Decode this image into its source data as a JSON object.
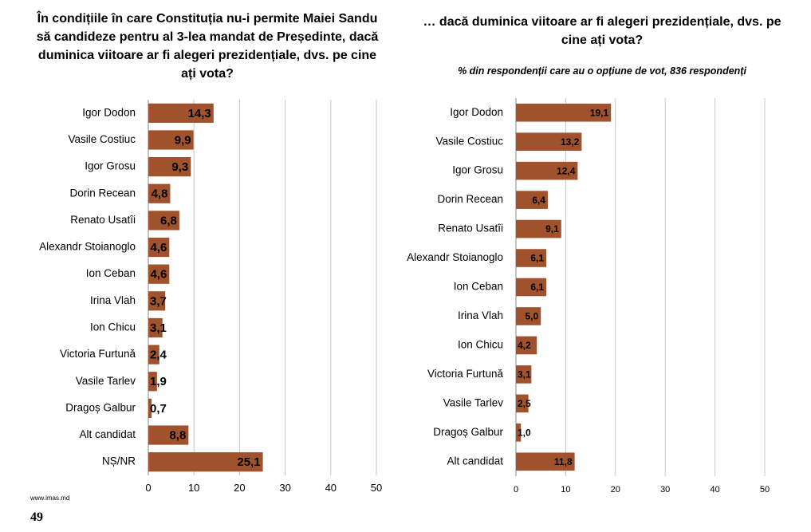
{
  "chart_data": [
    {
      "type": "bar",
      "orientation": "horizontal",
      "title": "În condițiile în care Constituția nu-i permite Maiei Sandu să candideze pentru al 3-lea mandat de Președinte, dacă duminica viitoare ar fi alegeri prezidențiale, dvs. pe cine ați vota?",
      "subtitle": "",
      "categories": [
        "Igor Dodon",
        "Vasile Costiuc",
        "Igor Grosu",
        "Dorin Recean",
        "Renato Usatîi",
        "Alexandr Stoianoglo",
        "Ion Ceban",
        "Irina Vlah",
        "Ion Chicu",
        "Victoria Furtună",
        "Vasile Tarlev",
        "Dragoș Galbur",
        "Alt candidat",
        "NȘ/NR"
      ],
      "values": [
        14.3,
        9.9,
        9.3,
        4.8,
        6.8,
        4.6,
        4.6,
        3.7,
        3.1,
        2.4,
        1.9,
        0.7,
        8.8,
        25.1
      ],
      "value_labels": [
        "14,3",
        "9,9",
        "9,3",
        "4,8",
        "6,8",
        "4,6",
        "4,6",
        "3,7",
        "3,1",
        "2,4",
        "1,9",
        "0,7",
        "8,8",
        "25,1"
      ],
      "xlim": [
        0,
        50
      ],
      "xticks": [
        0,
        10,
        20,
        30,
        40,
        50
      ],
      "xtick_labels": [
        "0",
        "10",
        "20",
        "30",
        "40",
        "50"
      ],
      "xlabel": "",
      "ylabel": "",
      "grid": true,
      "bar_color": "#A0522D"
    },
    {
      "type": "bar",
      "orientation": "horizontal",
      "title": "… dacă duminica viitoare ar fi alegeri prezidențiale, dvs. pe cine ați vota?",
      "subtitle": "% din respondenții care au o opțiune de vot, 836 respondenți",
      "categories": [
        "Igor Dodon",
        "Vasile Costiuc",
        "Igor Grosu",
        "Dorin Recean",
        "Renato Usatîi",
        "Alexandr Stoianoglo",
        "Ion Ceban",
        "Irina Vlah",
        "Ion Chicu",
        "Victoria Furtună",
        "Vasile Tarlev",
        "Dragoș Galbur",
        "Alt candidat"
      ],
      "values": [
        19.1,
        13.2,
        12.4,
        6.4,
        9.1,
        6.1,
        6.1,
        5.0,
        4.2,
        3.1,
        2.5,
        1.0,
        11.8
      ],
      "value_labels": [
        "19,1",
        "13,2",
        "12,4",
        "6,4",
        "9,1",
        "6,1",
        "6,1",
        "5,0",
        "4,2",
        "3,1",
        "2,5",
        "1,0",
        "11,8"
      ],
      "xlim": [
        0,
        50
      ],
      "xticks": [
        0,
        10,
        20,
        30,
        40,
        50
      ],
      "xtick_labels": [
        "0",
        "10",
        "20",
        "30",
        "40",
        "50"
      ],
      "xlabel": "",
      "ylabel": "",
      "grid": true,
      "bar_color": "#A0522D"
    }
  ],
  "footer": {
    "url": "www.imas.md",
    "page_number": "49"
  }
}
